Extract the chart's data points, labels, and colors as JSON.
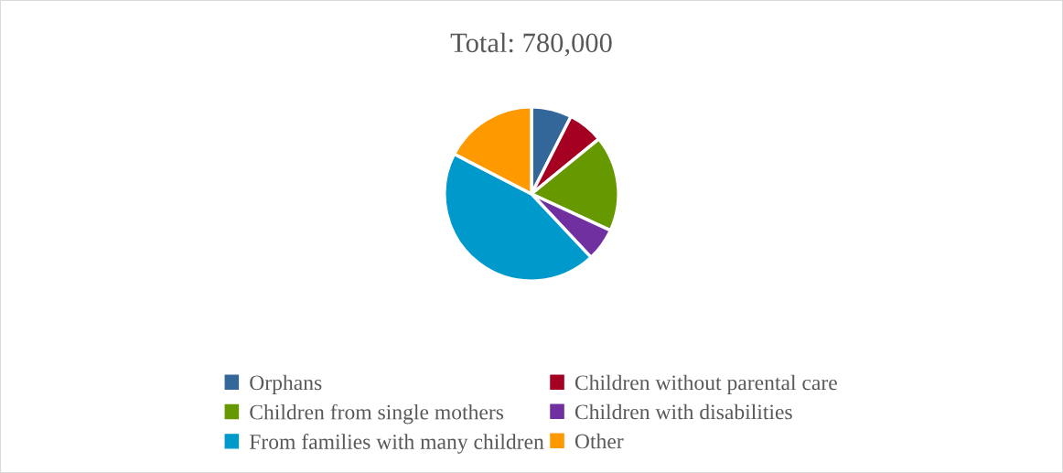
{
  "chart_data": {
    "type": "pie",
    "title": "Total: 780,000",
    "categories": [
      "Orphans",
      "Children without parental care",
      "Children from single mothers",
      "Children with disabilities",
      "From families with many children",
      "Other"
    ],
    "values": [
      7.5,
      6.6,
      17.8,
      6.1,
      44.6,
      17.4
    ],
    "colors": [
      "#336699",
      "#a50021",
      "#669900",
      "#7030a0",
      "#0099cc",
      "#ff9900"
    ],
    "legend": "bottom"
  }
}
